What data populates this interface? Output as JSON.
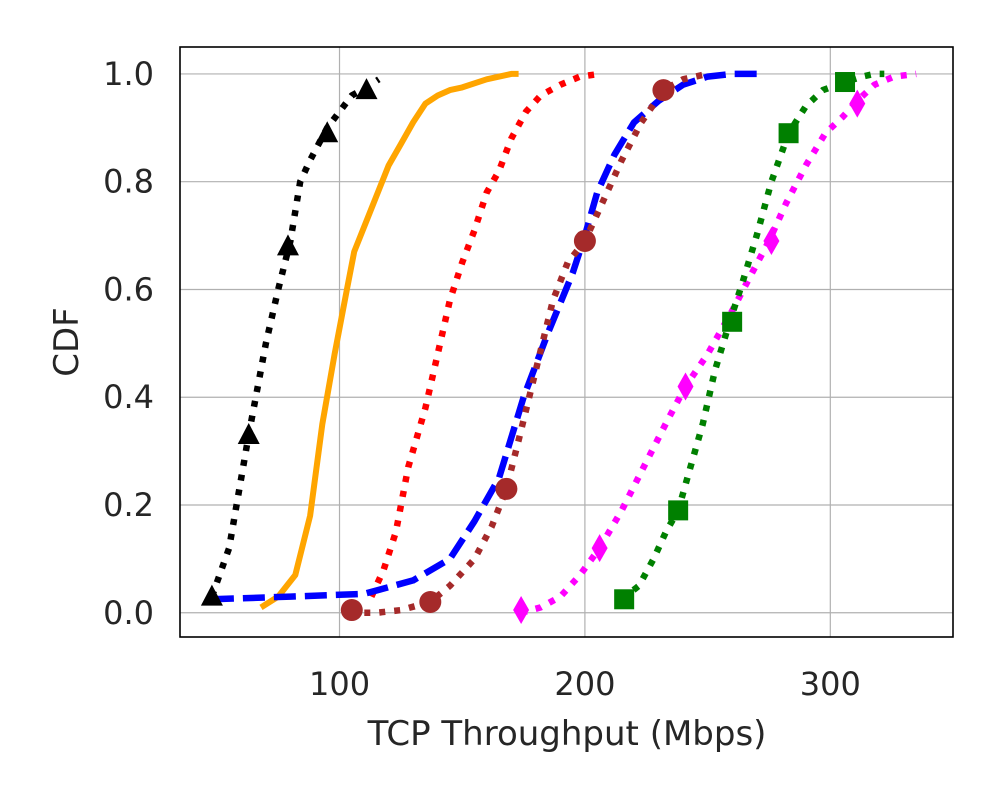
{
  "chart_data": {
    "type": "line",
    "title": "",
    "xlabel": "TCP Throughput (Mbps)",
    "ylabel": "CDF",
    "xlim": [
      35,
      350
    ],
    "ylim": [
      -0.045,
      1.05
    ],
    "xticks": [
      100,
      200,
      300
    ],
    "yticks": [
      0.0,
      0.2,
      0.4,
      0.6,
      0.8,
      1.0
    ],
    "xtick_labels": [
      "100",
      "200",
      "300"
    ],
    "ytick_labels": [
      "0.0",
      "0.2",
      "0.4",
      "0.6",
      "0.8",
      "1.0"
    ],
    "grid": true,
    "legend": "none",
    "series": [
      {
        "color": "#000000",
        "style": "dotted",
        "marker": "triangle",
        "x": [
          48,
          55,
          63,
          70,
          75,
          80,
          84,
          88,
          95,
          100,
          105,
          111,
          116
        ],
        "y": [
          0.03,
          0.12,
          0.33,
          0.5,
          0.6,
          0.69,
          0.8,
          0.84,
          0.9,
          0.93,
          0.96,
          0.975,
          0.99
        ],
        "marker_x": [
          48,
          63,
          79,
          95,
          111
        ],
        "marker_y": [
          0.03,
          0.33,
          0.68,
          0.89,
          0.97
        ]
      },
      {
        "color": "#FFA500",
        "style": "solid",
        "marker": "none",
        "x": [
          68,
          75,
          82,
          88,
          93,
          98,
          103,
          106,
          113,
          120,
          125,
          130,
          135,
          140,
          145,
          150,
          160,
          170,
          173
        ],
        "y": [
          0.01,
          0.03,
          0.07,
          0.18,
          0.35,
          0.48,
          0.6,
          0.67,
          0.75,
          0.83,
          0.87,
          0.91,
          0.945,
          0.96,
          0.97,
          0.975,
          0.99,
          1.0,
          1.0
        ],
        "marker_x": [],
        "marker_y": []
      },
      {
        "color": "#FF0000",
        "style": "dotted",
        "marker": "none",
        "x": [
          113,
          118,
          123,
          128,
          135,
          140,
          145,
          150,
          155,
          160,
          165,
          170,
          176,
          182,
          190,
          198,
          206
        ],
        "y": [
          0.03,
          0.08,
          0.15,
          0.27,
          0.38,
          0.48,
          0.58,
          0.65,
          0.71,
          0.78,
          0.82,
          0.88,
          0.93,
          0.96,
          0.98,
          0.995,
          1.0
        ],
        "marker_x": [],
        "marker_y": []
      },
      {
        "color": "#0000FF",
        "style": "dashed",
        "marker": "none",
        "x": [
          48,
          80,
          110,
          130,
          145,
          155,
          165,
          175,
          185,
          195,
          200,
          205,
          212,
          220,
          230,
          240,
          250,
          260,
          271
        ],
        "y": [
          0.025,
          0.03,
          0.035,
          0.06,
          0.1,
          0.17,
          0.25,
          0.4,
          0.52,
          0.63,
          0.7,
          0.78,
          0.85,
          0.91,
          0.95,
          0.98,
          0.995,
          1.0,
          1.0
        ],
        "marker_x": [],
        "marker_y": []
      },
      {
        "color": "#A52A2A",
        "style": "dotted",
        "marker": "circle",
        "x": [
          104,
          115,
          125,
          137,
          145,
          155,
          162,
          168,
          173,
          180,
          187,
          193,
          200,
          207,
          215,
          223,
          232,
          240,
          250
        ],
        "y": [
          0.0,
          0.0,
          0.005,
          0.02,
          0.05,
          0.1,
          0.16,
          0.23,
          0.32,
          0.45,
          0.58,
          0.65,
          0.69,
          0.76,
          0.84,
          0.91,
          0.97,
          0.99,
          1.0
        ],
        "marker_x": [
          105,
          137,
          168,
          200,
          232
        ],
        "marker_y": [
          0.005,
          0.02,
          0.23,
          0.69,
          0.97
        ]
      },
      {
        "color": "#FF00FF",
        "style": "dotted",
        "marker": "diamond",
        "x": [
          174,
          182,
          190,
          198,
          206,
          215,
          225,
          234,
          241,
          250,
          260,
          268,
          275,
          282,
          290,
          298,
          305,
          311,
          318,
          326,
          335
        ],
        "y": [
          0.0,
          0.01,
          0.03,
          0.07,
          0.12,
          0.19,
          0.28,
          0.36,
          0.42,
          0.48,
          0.56,
          0.63,
          0.69,
          0.76,
          0.83,
          0.89,
          0.92,
          0.95,
          0.98,
          0.995,
          1.0
        ],
        "marker_x": [
          174,
          206,
          241,
          276,
          311
        ],
        "marker_y": [
          0.005,
          0.12,
          0.42,
          0.69,
          0.945
        ]
      },
      {
        "color": "#008000",
        "style": "dotted",
        "marker": "square",
        "x": [
          215,
          222,
          228,
          233,
          238,
          243,
          248,
          253,
          259,
          264,
          270,
          276,
          283,
          290,
          297,
          306,
          313,
          318,
          322
        ],
        "y": [
          0.025,
          0.05,
          0.1,
          0.15,
          0.19,
          0.27,
          0.35,
          0.45,
          0.54,
          0.61,
          0.7,
          0.8,
          0.89,
          0.94,
          0.97,
          0.985,
          0.995,
          1.0,
          1.0
        ],
        "marker_x": [
          216,
          238,
          260,
          283,
          306
        ],
        "marker_y": [
          0.025,
          0.19,
          0.54,
          0.89,
          0.985
        ]
      }
    ]
  }
}
